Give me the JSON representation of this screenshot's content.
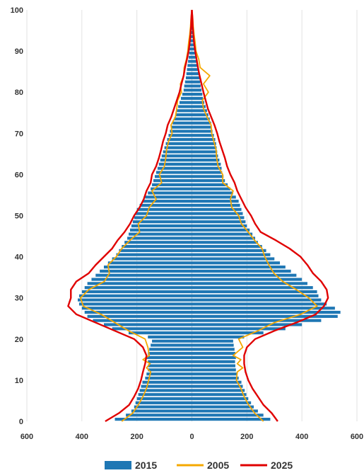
{
  "chart_data": {
    "type": "population-pyramid",
    "x_axis": {
      "range": [
        -600,
        600
      ],
      "ticks": [
        -600,
        -400,
        -200,
        0,
        200,
        400,
        600
      ],
      "tick_labels": [
        "600",
        "400",
        "200",
        "0",
        "200",
        "400",
        "600"
      ]
    },
    "y_axis": {
      "range": [
        0,
        100
      ],
      "ticks": [
        0,
        10,
        20,
        30,
        40,
        50,
        60,
        70,
        80,
        90,
        100
      ],
      "tick_labels": [
        "0",
        "10",
        "20",
        "30",
        "40",
        "50",
        "60",
        "70",
        "80",
        "90",
        "100"
      ]
    },
    "grid": "vertical",
    "legend": {
      "placement": "bottom",
      "entries": [
        "2015",
        "2005",
        "2025"
      ]
    },
    "colors": {
      "2015": "#1f77b4",
      "2005": "#f5a800",
      "2025": "#e00000"
    },
    "series": [
      {
        "name": "2015",
        "kind": "bars",
        "ages": [
          0,
          1,
          2,
          3,
          4,
          5,
          6,
          7,
          8,
          9,
          10,
          11,
          12,
          13,
          14,
          15,
          16,
          17,
          18,
          19,
          20,
          21,
          22,
          23,
          24,
          25,
          26,
          27,
          28,
          29,
          30,
          31,
          32,
          33,
          34,
          35,
          36,
          37,
          38,
          39,
          40,
          41,
          42,
          43,
          44,
          45,
          46,
          47,
          48,
          49,
          50,
          51,
          52,
          53,
          54,
          55,
          56,
          57,
          58,
          59,
          60,
          61,
          62,
          63,
          64,
          65,
          66,
          67,
          68,
          69,
          70,
          71,
          72,
          73,
          74,
          75,
          76,
          77,
          78,
          79,
          80,
          81,
          82,
          83,
          84,
          85,
          86,
          87,
          88,
          89,
          90,
          91,
          92,
          93,
          94,
          95,
          96,
          97,
          98,
          99
        ],
        "left": [
          -280,
          -240,
          -220,
          -210,
          -205,
          -200,
          -195,
          -190,
          -185,
          -180,
          -170,
          -165,
          -160,
          -160,
          -160,
          -165,
          -160,
          -155,
          -150,
          -145,
          -160,
          -230,
          -290,
          -320,
          -360,
          -380,
          -390,
          -400,
          -410,
          -415,
          -410,
          -400,
          -390,
          -380,
          -365,
          -350,
          -335,
          -320,
          -305,
          -290,
          -275,
          -265,
          -255,
          -245,
          -235,
          -230,
          -225,
          -220,
          -215,
          -210,
          -205,
          -200,
          -190,
          -180,
          -170,
          -160,
          -150,
          -145,
          -140,
          -135,
          -130,
          -125,
          -120,
          -115,
          -110,
          -105,
          -100,
          -95,
          -90,
          -85,
          -80,
          -75,
          -70,
          -65,
          -60,
          -55,
          -50,
          -45,
          -40,
          -35,
          -30,
          -28,
          -25,
          -22,
          -20,
          -18,
          -16,
          -14,
          -12,
          -10,
          -9,
          -8,
          -7,
          -6,
          -5,
          -4,
          -3,
          -3,
          -2,
          -1
        ],
        "right": [
          285,
          260,
          240,
          225,
          215,
          205,
          198,
          192,
          185,
          180,
          170,
          165,
          160,
          158,
          157,
          160,
          158,
          155,
          152,
          150,
          190,
          260,
          340,
          400,
          470,
          530,
          540,
          520,
          490,
          470,
          460,
          455,
          440,
          420,
          400,
          380,
          360,
          340,
          320,
          300,
          285,
          270,
          255,
          240,
          230,
          220,
          210,
          200,
          195,
          190,
          185,
          180,
          175,
          170,
          160,
          150,
          140,
          130,
          120,
          115,
          110,
          108,
          105,
          100,
          95,
          92,
          90,
          88,
          85,
          80,
          75,
          72,
          70,
          65,
          60,
          55,
          50,
          45,
          40,
          38,
          35,
          32,
          30,
          28,
          25,
          22,
          20,
          18,
          15,
          12,
          10,
          9,
          8,
          7,
          6,
          5,
          4,
          3,
          2,
          2
        ]
      },
      {
        "name": "2005",
        "kind": "line",
        "ages": [
          0,
          2,
          4,
          6,
          8,
          10,
          12,
          13,
          14,
          15,
          16,
          18,
          20,
          22,
          24,
          26,
          28,
          30,
          32,
          34,
          36,
          38,
          40,
          42,
          44,
          46,
          48,
          50,
          52,
          54,
          56,
          58,
          60,
          62,
          64,
          66,
          68,
          70,
          72,
          74,
          76,
          78,
          80,
          82,
          84,
          86,
          88,
          90,
          92,
          94,
          96,
          98,
          100
        ],
        "left": [
          -255,
          -215,
          -195,
          -178,
          -165,
          -157,
          -150,
          -165,
          -152,
          -178,
          -155,
          -160,
          -170,
          -230,
          -280,
          -330,
          -395,
          -405,
          -375,
          -318,
          -300,
          -305,
          -275,
          -255,
          -225,
          -190,
          -195,
          -165,
          -155,
          -130,
          -145,
          -110,
          -118,
          -100,
          -95,
          -92,
          -85,
          -72,
          -76,
          -60,
          -55,
          -52,
          -38,
          -42,
          -30,
          -28,
          -20,
          -15,
          -12,
          -8,
          -5,
          -3,
          0
        ],
        "right": [
          260,
          228,
          206,
          190,
          178,
          162,
          165,
          185,
          165,
          178,
          150,
          185,
          170,
          240,
          300,
          395,
          455,
          425,
          380,
          330,
          298,
          280,
          265,
          255,
          228,
          205,
          180,
          170,
          145,
          140,
          150,
          112,
          112,
          95,
          90,
          88,
          80,
          72,
          70,
          55,
          42,
          38,
          60,
          42,
          65,
          30,
          25,
          15,
          12,
          8,
          5,
          3,
          0
        ]
      },
      {
        "name": "2025",
        "kind": "line",
        "ages": [
          0,
          2,
          4,
          6,
          8,
          10,
          12,
          14,
          16,
          18,
          20,
          22,
          24,
          26,
          28,
          30,
          32,
          34,
          36,
          38,
          40,
          42,
          44,
          46,
          48,
          50,
          52,
          54,
          56,
          58,
          60,
          62,
          64,
          66,
          68,
          70,
          72,
          74,
          76,
          78,
          80,
          82,
          84,
          86,
          88,
          90,
          92,
          94,
          96,
          98,
          100
        ],
        "left": [
          -315,
          -265,
          -228,
          -210,
          -195,
          -185,
          -178,
          -170,
          -165,
          -178,
          -210,
          -280,
          -350,
          -420,
          -450,
          -440,
          -440,
          -420,
          -375,
          -350,
          -320,
          -290,
          -270,
          -245,
          -225,
          -210,
          -190,
          -175,
          -165,
          -150,
          -145,
          -130,
          -120,
          -112,
          -105,
          -95,
          -88,
          -75,
          -65,
          -55,
          -45,
          -38,
          -30,
          -25,
          -18,
          -12,
          -8,
          -5,
          -3,
          -2,
          0
        ],
        "right": [
          312,
          290,
          260,
          240,
          220,
          205,
          195,
          190,
          190,
          200,
          230,
          300,
          380,
          450,
          480,
          495,
          490,
          470,
          440,
          420,
          395,
          355,
          305,
          250,
          230,
          215,
          195,
          180,
          165,
          155,
          140,
          128,
          120,
          110,
          100,
          92,
          82,
          70,
          58,
          50,
          42,
          35,
          28,
          22,
          17,
          12,
          8,
          5,
          3,
          2,
          0
        ]
      }
    ]
  }
}
